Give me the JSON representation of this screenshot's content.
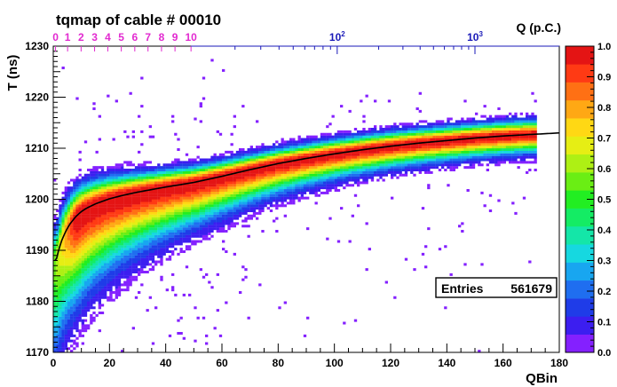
{
  "chart_data": {
    "type": "heatmap",
    "title": "tqmap of cable # 00010",
    "xlabel": "QBin",
    "ylabel": "T (ns)",
    "xlim": [
      0,
      180
    ],
    "ylim": [
      1170,
      1230
    ],
    "x_ticks": [
      "0",
      "20",
      "40",
      "60",
      "80",
      "100",
      "120",
      "140",
      "160",
      "180"
    ],
    "y_ticks": [
      "1170",
      "1180",
      "1190",
      "1200",
      "1210",
      "1220",
      "1230"
    ],
    "top_axis": {
      "label": "Q (p.C.)",
      "linear_ticks": [
        {
          "label": "0",
          "qbin": 0.8
        },
        {
          "label": "1",
          "qbin": 5.1
        },
        {
          "label": "2",
          "qbin": 9.9
        },
        {
          "label": "3",
          "qbin": 14.7
        },
        {
          "label": "4",
          "qbin": 19.4
        },
        {
          "label": "5",
          "qbin": 24.2
        },
        {
          "label": "6",
          "qbin": 29
        },
        {
          "label": "7",
          "qbin": 33.7
        },
        {
          "label": "8",
          "qbin": 38.5
        },
        {
          "label": "9",
          "qbin": 43.3
        },
        {
          "label": "10",
          "qbin": 49
        },
        {
          "label": "10",
          "exp": "2",
          "qbin": 101
        },
        {
          "label": "10",
          "exp": "3",
          "qbin": 150
        }
      ],
      "linear_color": "#e22ad0",
      "log_color": "#1a1ab8"
    },
    "colorbar": {
      "min": 0.0,
      "max": 1.0,
      "ticks": [
        "0.0",
        "0.1",
        "0.2",
        "0.3",
        "0.4",
        "0.5",
        "0.6",
        "0.7",
        "0.8",
        "0.9",
        "1.0"
      ],
      "colors": [
        "#8420ff",
        "#3c1ef0",
        "#1f3ce8",
        "#1f6ef0",
        "#18a6f0",
        "#16d8e0",
        "#14e6a8",
        "#14ec64",
        "#22ee22",
        "#6aee14",
        "#aef014",
        "#e6ee14",
        "#ffd814",
        "#ffa814",
        "#ff7014",
        "#ff3a14",
        "#e41414"
      ]
    },
    "fit_curve": {
      "color": "#000000",
      "x": [
        1,
        2,
        3,
        4,
        5,
        6,
        8,
        10,
        12,
        15,
        20,
        25,
        30,
        40,
        50,
        60,
        70,
        80,
        90,
        100,
        110,
        120,
        130,
        140,
        150,
        160,
        170,
        180
      ],
      "y": [
        1188,
        1190.2,
        1191.9,
        1193.2,
        1194.3,
        1195.2,
        1196.6,
        1197.6,
        1198.3,
        1199.1,
        1200.1,
        1200.8,
        1201.4,
        1202.4,
        1203.3,
        1204.5,
        1205.8,
        1207,
        1208,
        1208.9,
        1209.7,
        1210.4,
        1211,
        1211.5,
        1212,
        1212.4,
        1212.7,
        1213
      ]
    },
    "stats": {
      "label": "Entries",
      "value": "561679"
    },
    "grid": false,
    "legend": "none"
  }
}
